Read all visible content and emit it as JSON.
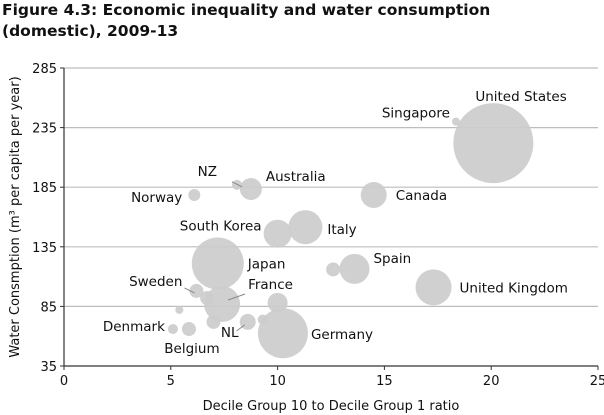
{
  "chart_data": {
    "type": "scatter",
    "subtype": "bubble",
    "title": "Figure 4.3: Economic inequality and water consumption (domestic), 2009-13",
    "xlabel": "Decile Group 10 to Decile Group 1 ratio",
    "ylabel": "Water Consmption (m³ per capita per year)",
    "xlim": [
      0,
      25
    ],
    "ylim": [
      35,
      285
    ],
    "xticks": [
      0,
      5,
      10,
      15,
      20,
      25
    ],
    "yticks": [
      35,
      85,
      135,
      185,
      235,
      285
    ],
    "grid": "horizontal",
    "bubble_color": "#cccccc",
    "points": [
      {
        "label": "United States",
        "x": 20.1,
        "y": 222,
        "size": 1600
      },
      {
        "label": "Singapore",
        "x": 18.35,
        "y": 240,
        "size": 16
      },
      {
        "label": "Canada",
        "x": 14.5,
        "y": 178.5,
        "size": 169
      },
      {
        "label": "Italy",
        "x": 11.3,
        "y": 151.5,
        "size": 289
      },
      {
        "label": "South Korea",
        "x": 10.0,
        "y": 146,
        "size": 196
      },
      {
        "label": "Australia",
        "x": 8.75,
        "y": 183.5,
        "size": 121
      },
      {
        "label": "NZ",
        "x": 8.1,
        "y": 187,
        "size": 25
      },
      {
        "label": "Norway",
        "x": 6.1,
        "y": 178.5,
        "size": 36
      },
      {
        "label": "Japan",
        "x": 7.2,
        "y": 121,
        "size": 676
      },
      {
        "label": "Spain",
        "x": 13.6,
        "y": 116.5,
        "size": 225
      },
      {
        "label": "",
        "x": 12.6,
        "y": 116,
        "size": 49
      },
      {
        "label": "United Kingdom",
        "x": 17.3,
        "y": 101,
        "size": 324
      },
      {
        "label": "Sweden",
        "x": 6.2,
        "y": 98,
        "size": 49
      },
      {
        "label": "",
        "x": 6.7,
        "y": 92,
        "size": 49
      },
      {
        "label": "France",
        "x": 7.4,
        "y": 87,
        "size": 324
      },
      {
        "label": "",
        "x": 10.0,
        "y": 88,
        "size": 100
      },
      {
        "label": "",
        "x": 5.4,
        "y": 82,
        "size": 16
      },
      {
        "label": "",
        "x": 7.0,
        "y": 72,
        "size": 49
      },
      {
        "label": "NL",
        "x": 8.6,
        "y": 72,
        "size": 64
      },
      {
        "label": "",
        "x": 9.3,
        "y": 74,
        "size": 25
      },
      {
        "label": "Germany",
        "x": 10.25,
        "y": 62.5,
        "size": 625
      },
      {
        "label": "Denmark",
        "x": 5.1,
        "y": 66,
        "size": 25
      },
      {
        "label": "Belgium",
        "x": 5.85,
        "y": 66,
        "size": 49
      }
    ]
  }
}
